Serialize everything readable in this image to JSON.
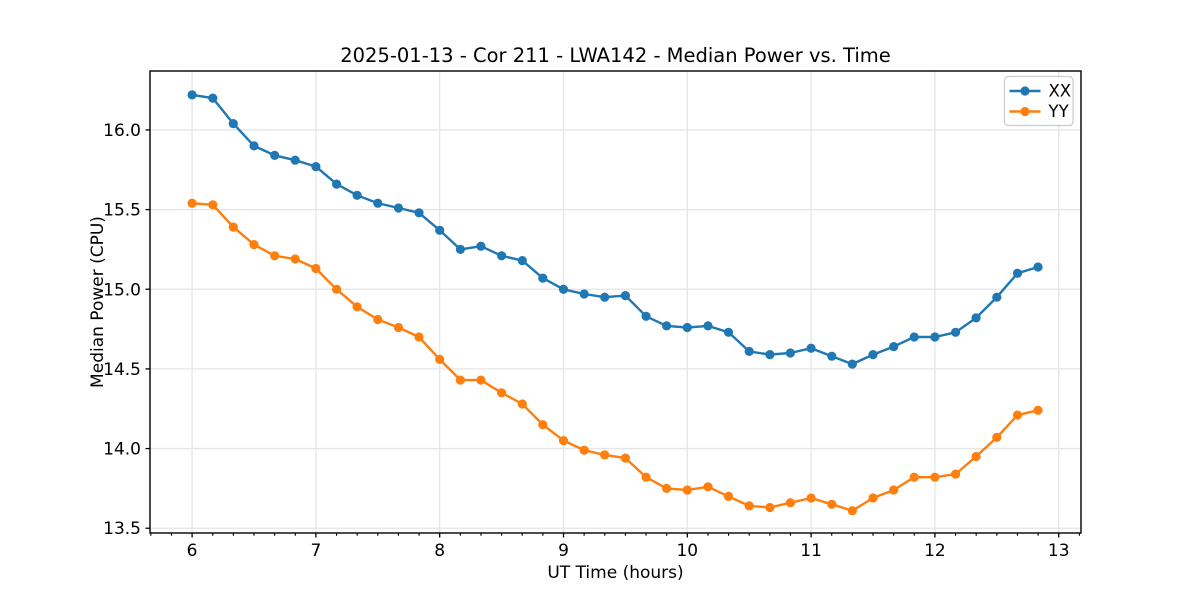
{
  "chart_data": {
    "type": "line",
    "title": "2025-01-13 - Cor 211 - LWA142 - Median Power vs. Time",
    "xlabel": "UT Time (hours)",
    "ylabel": "Median Power (CPU)",
    "x": [
      6.0,
      6.167,
      6.333,
      6.5,
      6.667,
      6.833,
      7.0,
      7.167,
      7.333,
      7.5,
      7.667,
      7.833,
      8.0,
      8.167,
      8.333,
      8.5,
      8.667,
      8.833,
      9.0,
      9.167,
      9.333,
      9.5,
      9.667,
      9.833,
      10.0,
      10.167,
      10.333,
      10.5,
      10.667,
      10.833,
      11.0,
      11.167,
      11.333,
      11.5,
      11.667,
      11.833,
      12.0,
      12.167,
      12.333,
      12.5,
      12.667,
      12.833
    ],
    "series": [
      {
        "name": "XX",
        "color": "#1f77b4",
        "values": [
          16.22,
          16.2,
          16.04,
          15.9,
          15.84,
          15.81,
          15.77,
          15.66,
          15.59,
          15.54,
          15.51,
          15.48,
          15.37,
          15.25,
          15.27,
          15.21,
          15.18,
          15.07,
          15.0,
          14.97,
          14.95,
          14.96,
          14.83,
          14.77,
          14.76,
          14.77,
          14.73,
          14.61,
          14.59,
          14.6,
          14.63,
          14.58,
          14.53,
          14.59,
          14.64,
          14.7,
          14.7,
          14.73,
          14.82,
          14.95,
          15.1,
          15.14
        ]
      },
      {
        "name": "YY",
        "color": "#ff7f0e",
        "values": [
          15.54,
          15.53,
          15.39,
          15.28,
          15.21,
          15.19,
          15.13,
          15.0,
          14.89,
          14.81,
          14.76,
          14.7,
          14.56,
          14.43,
          14.43,
          14.35,
          14.28,
          14.15,
          14.05,
          13.99,
          13.96,
          13.94,
          13.82,
          13.75,
          13.74,
          13.76,
          13.7,
          13.64,
          13.63,
          13.66,
          13.69,
          13.65,
          13.61,
          13.69,
          13.74,
          13.82,
          13.82,
          13.84,
          13.95,
          14.07,
          14.21,
          14.24
        ]
      }
    ],
    "xlim": [
      5.66,
      13.18
    ],
    "ylim": [
      13.47,
      16.37
    ],
    "x_ticks": [
      "6",
      "7",
      "8",
      "9",
      "10",
      "11",
      "12",
      "13"
    ],
    "y_ticks": [
      "13.5",
      "14.0",
      "14.5",
      "15.0",
      "15.5",
      "16.0"
    ],
    "minor_x_tick_step_hours": 0.1667,
    "grid": true,
    "legend_position": "upper right"
  },
  "colors": {
    "background": "#ffffff",
    "grid": "#e5e5e5",
    "spine": "#000000",
    "tick": "#000000",
    "legend_border": "#cccccc",
    "legend_background": "#ffffff"
  }
}
